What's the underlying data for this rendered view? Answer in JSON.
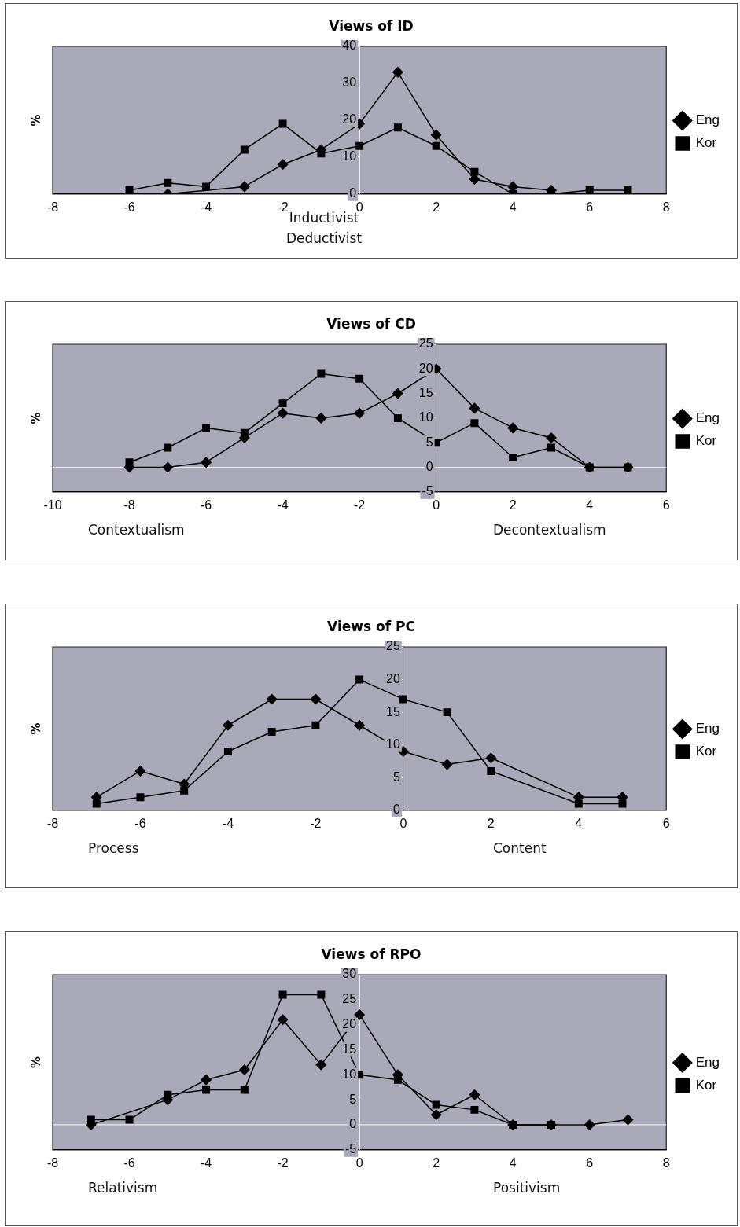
{
  "chart_data": [
    {
      "type": "line",
      "title": "Views of ID",
      "ylabel": "%",
      "xlim": [
        -8,
        8
      ],
      "xticks": [
        -8,
        -6,
        -4,
        -2,
        0,
        2,
        4,
        6,
        8
      ],
      "ylim": [
        0,
        40
      ],
      "yticks": [
        0,
        10,
        20,
        30,
        40
      ],
      "grid": false,
      "legend": "right",
      "annotations": [
        "Inductivist",
        "Deductivist"
      ],
      "series": [
        {
          "name": "Eng",
          "color": "#000000",
          "marker": "diamond",
          "x": [
            -6,
            -5,
            -4,
            -3,
            -2,
            -1,
            0,
            1,
            2,
            3,
            4,
            5
          ],
          "values": [
            0,
            0,
            null,
            2,
            8,
            12,
            19,
            33,
            16,
            4,
            2,
            1
          ]
        },
        {
          "name": "Kor",
          "color": "#000000",
          "marker": "square",
          "x": [
            -6,
            -5,
            -4,
            -3,
            -2,
            -1,
            0,
            1,
            2,
            3,
            4,
            5,
            6,
            7
          ],
          "values": [
            1,
            3,
            2,
            12,
            19,
            11,
            13,
            18,
            13,
            6,
            0,
            0,
            1,
            1
          ]
        }
      ]
    },
    {
      "type": "line",
      "title": "Views of CD",
      "ylabel": "%",
      "xlim": [
        -10,
        6
      ],
      "xticks": [
        -10,
        -8,
        -6,
        -4,
        -2,
        0,
        2,
        4,
        6
      ],
      "ylim": [
        -5,
        25
      ],
      "yticks": [
        -5,
        0,
        5,
        10,
        15,
        20,
        25
      ],
      "grid": false,
      "legend": "right",
      "annotations": [
        "Contextualism",
        "Decontextualism"
      ],
      "ref_lines": [
        {
          "axis": "y",
          "value": 0
        }
      ],
      "series": [
        {
          "name": "Eng",
          "color": "#000000",
          "marker": "diamond",
          "x": [
            -8,
            -7,
            -6,
            -5,
            -4,
            -3,
            -2,
            -1,
            0,
            1,
            2,
            3,
            4,
            5
          ],
          "values": [
            0,
            0,
            1,
            6,
            11,
            10,
            11,
            15,
            20,
            12,
            8,
            6,
            0,
            0
          ]
        },
        {
          "name": "Kor",
          "color": "#000000",
          "marker": "square",
          "x": [
            -8,
            -7,
            -6,
            -5,
            -4,
            -3,
            -2,
            -1,
            0,
            1,
            2,
            3,
            4,
            5
          ],
          "values": [
            1,
            4,
            8,
            7,
            13,
            19,
            18,
            10,
            5,
            9,
            2,
            4,
            0,
            0
          ]
        }
      ]
    },
    {
      "type": "line",
      "title": "Views of PC",
      "ylabel": "%",
      "xlim": [
        -8,
        6
      ],
      "xticks": [
        -8,
        -6,
        -4,
        -2,
        0,
        2,
        4,
        6
      ],
      "ylim": [
        0,
        25
      ],
      "yticks": [
        0,
        5,
        10,
        15,
        20,
        25
      ],
      "grid": false,
      "legend": "right",
      "annotations": [
        "Process",
        "Content"
      ],
      "series": [
        {
          "name": "Eng",
          "color": "#000000",
          "marker": "diamond",
          "x": [
            -7,
            -6,
            -5,
            -4,
            -3,
            -2,
            -1,
            0,
            1,
            2,
            4,
            5
          ],
          "values": [
            2,
            6,
            4,
            13,
            17,
            17,
            13,
            9,
            7,
            8,
            2,
            2
          ]
        },
        {
          "name": "Kor",
          "color": "#000000",
          "marker": "square",
          "x": [
            -7,
            -6,
            -5,
            -4,
            -3,
            -2,
            -1,
            0,
            1,
            2,
            4,
            5
          ],
          "values": [
            1,
            2,
            3,
            9,
            12,
            13,
            20,
            17,
            15,
            6,
            1,
            1
          ]
        }
      ]
    },
    {
      "type": "line",
      "title": "Views of RPO",
      "ylabel": "%",
      "xlim": [
        -8,
        8
      ],
      "xticks": [
        -8,
        -6,
        -4,
        -2,
        0,
        2,
        4,
        6,
        8
      ],
      "ylim": [
        -5,
        30
      ],
      "yticks": [
        -5,
        0,
        5,
        10,
        15,
        20,
        25,
        30
      ],
      "grid": false,
      "legend": "right",
      "annotations": [
        "Relativism",
        "Positivism"
      ],
      "ref_lines": [
        {
          "axis": "y",
          "value": 0
        }
      ],
      "series": [
        {
          "name": "Eng",
          "color": "#000000",
          "marker": "diamond",
          "x": [
            -7,
            -6,
            -5,
            -4,
            -3,
            -2,
            -1,
            0,
            1,
            2,
            3,
            4,
            5,
            6,
            7
          ],
          "values": [
            0,
            null,
            5,
            9,
            11,
            21,
            12,
            22,
            10,
            2,
            6,
            0,
            0,
            0,
            1
          ]
        },
        {
          "name": "Kor",
          "color": "#000000",
          "marker": "square",
          "x": [
            -7,
            -6,
            -5,
            -4,
            -3,
            -2,
            -1,
            0,
            1,
            2,
            3,
            4,
            5
          ],
          "values": [
            1,
            1,
            6,
            7,
            7,
            26,
            26,
            10,
            9,
            4,
            3,
            0,
            0
          ]
        }
      ]
    }
  ]
}
